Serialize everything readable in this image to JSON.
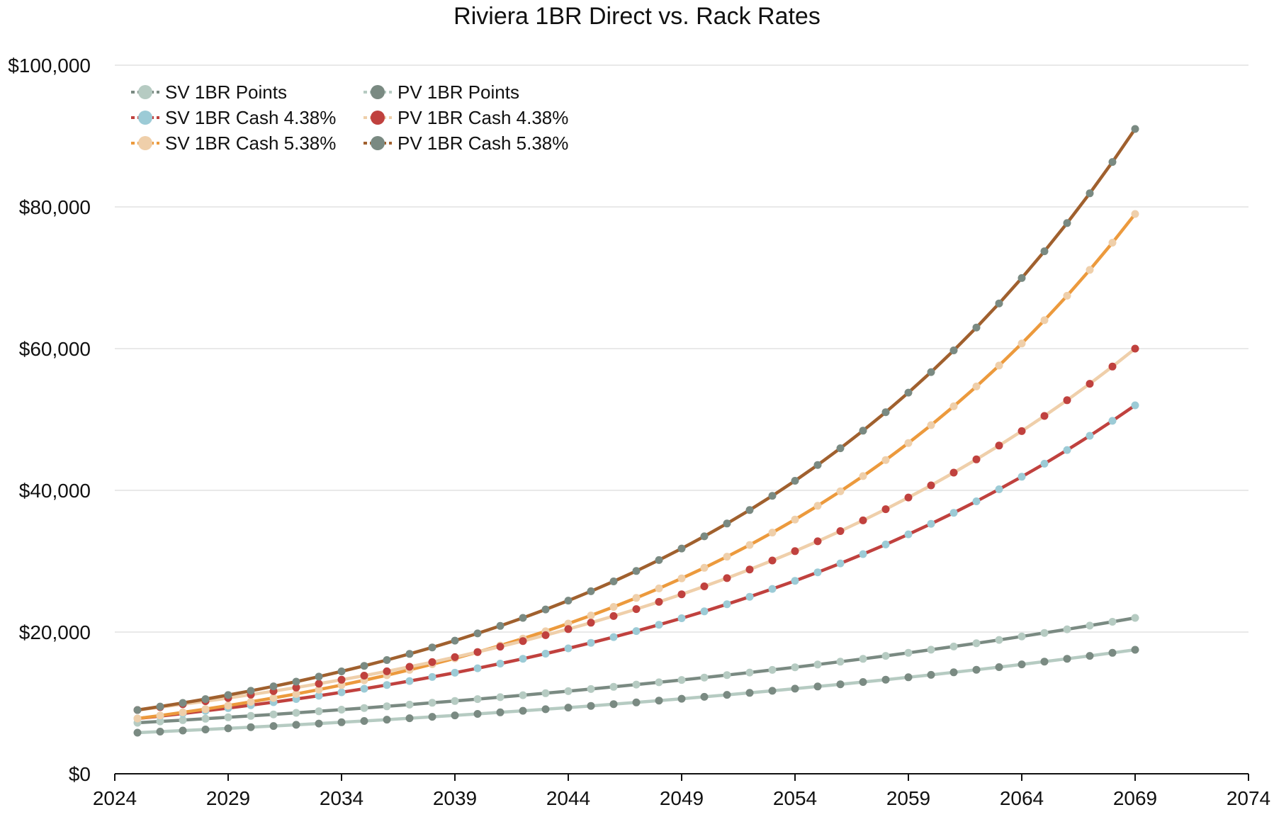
{
  "chart_data": {
    "type": "line",
    "title": "Riviera 1BR Direct vs. Rack Rates",
    "xlabel": "",
    "ylabel": "",
    "xlim": [
      2024,
      2074
    ],
    "ylim": [
      0,
      100000
    ],
    "x_ticks": [
      "2024",
      "2029",
      "2034",
      "2039",
      "2044",
      "2049",
      "2054",
      "2059",
      "2064",
      "2069",
      "2074"
    ],
    "y_ticks": [
      "$0",
      "$20,000",
      "$40,000",
      "$60,000",
      "$80,000",
      "$100,000"
    ],
    "grid": true,
    "legend_position": "top-left",
    "x_start": 2025,
    "x_end": 2069,
    "series": [
      {
        "name": "SV 1BR Points",
        "start": 7200,
        "end": 22000,
        "line_color": "#7a8a82",
        "marker_color": "#b6cbc2"
      },
      {
        "name": "SV 1BR Cash 4.38%",
        "start": 7800,
        "end": 52000,
        "line_color": "#c0413e",
        "marker_color": "#9ccbd6"
      },
      {
        "name": "SV 1BR Cash 5.38%",
        "start": 7800,
        "end": 79000,
        "line_color": "#ec9a3d",
        "marker_color": "#efcfaa"
      },
      {
        "name": "PV 1BR Points",
        "start": 5800,
        "end": 17500,
        "line_color": "#b6cbc2",
        "marker_color": "#7a8a82"
      },
      {
        "name": "PV 1BR Cash 4.38%",
        "start": 9000,
        "end": 60000,
        "line_color": "#efcfaa",
        "marker_color": "#c0413e"
      },
      {
        "name": "PV 1BR Cash 5.38%",
        "start": 9000,
        "end": 91000,
        "line_color": "#a0602e",
        "marker_color": "#7a8a82"
      }
    ]
  }
}
